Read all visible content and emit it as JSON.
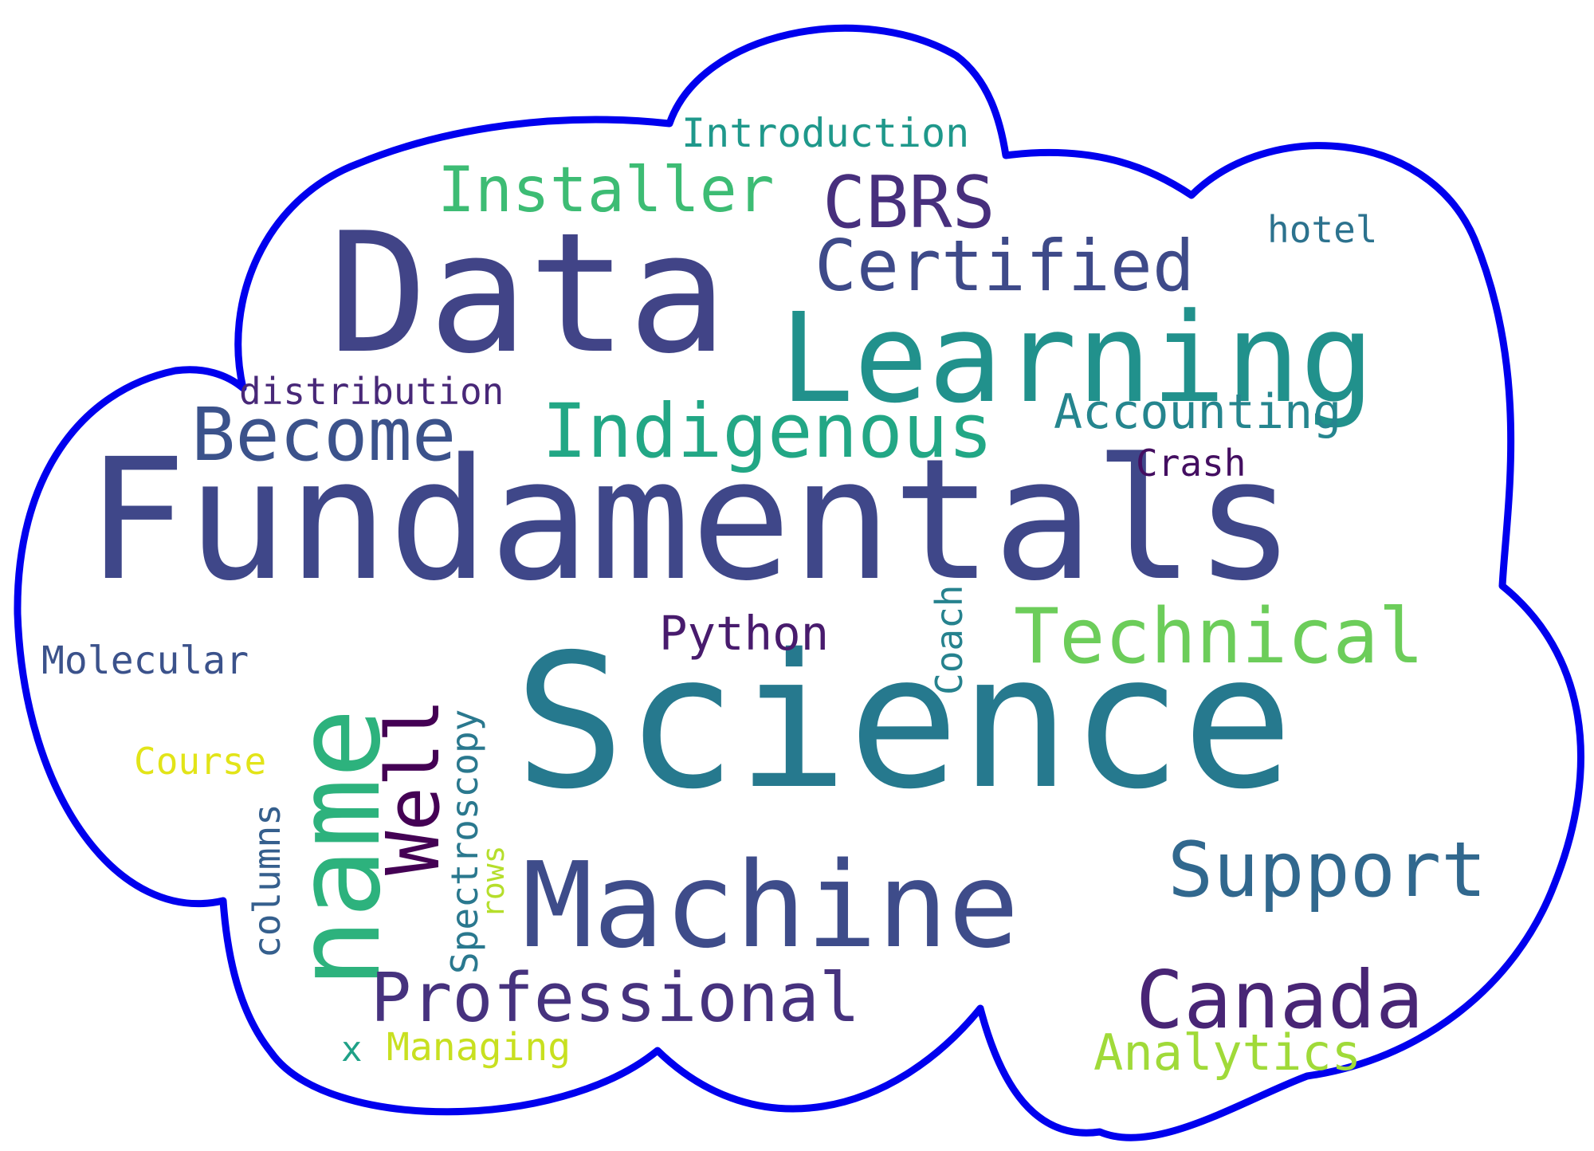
{
  "colors": {
    "outline": "#0000ee",
    "background": "#ffffff"
  },
  "words": [
    {
      "id": "fundamentals",
      "text": "Fundamentals",
      "color": "#3f4789",
      "orientation": "horizontal"
    },
    {
      "id": "science",
      "text": "Science",
      "color": "#26798e",
      "orientation": "horizontal"
    },
    {
      "id": "data",
      "text": "Data",
      "color": "#414487",
      "orientation": "horizontal"
    },
    {
      "id": "learning",
      "text": "Learning",
      "color": "#21918c",
      "orientation": "horizontal"
    },
    {
      "id": "machine",
      "text": "Machine",
      "color": "#3e4c8a",
      "orientation": "horizontal"
    },
    {
      "id": "name",
      "text": "name",
      "color": "#2db27d",
      "orientation": "vertical"
    },
    {
      "id": "technical",
      "text": "Technical",
      "color": "#6ccd5a",
      "orientation": "horizontal"
    },
    {
      "id": "indigenous",
      "text": "Indigenous",
      "color": "#22a785",
      "orientation": "horizontal"
    },
    {
      "id": "become",
      "text": "Become",
      "color": "#3b528b",
      "orientation": "horizontal"
    },
    {
      "id": "certified",
      "text": "Certified",
      "color": "#3e4a89",
      "orientation": "horizontal"
    },
    {
      "id": "cbrs",
      "text": "CBRS",
      "color": "#472f7d",
      "orientation": "horizontal"
    },
    {
      "id": "installer",
      "text": "Installer",
      "color": "#3dbc74",
      "orientation": "horizontal"
    },
    {
      "id": "support",
      "text": "Support",
      "color": "#31688e",
      "orientation": "horizontal"
    },
    {
      "id": "canada",
      "text": "Canada",
      "color": "#482575",
      "orientation": "horizontal"
    },
    {
      "id": "professional",
      "text": "Professional",
      "color": "#46327e",
      "orientation": "horizontal"
    },
    {
      "id": "well",
      "text": "Well",
      "color": "#440154",
      "orientation": "vertical"
    },
    {
      "id": "accounting",
      "text": "Accounting",
      "color": "#25858e",
      "orientation": "horizontal"
    },
    {
      "id": "analytics",
      "text": "Analytics",
      "color": "#a0da39",
      "orientation": "horizontal"
    },
    {
      "id": "python",
      "text": "Python",
      "color": "#481b6d",
      "orientation": "horizontal"
    },
    {
      "id": "introduction",
      "text": "Introduction",
      "color": "#1f988b",
      "orientation": "horizontal"
    },
    {
      "id": "distribution",
      "text": "distribution",
      "color": "#482878",
      "orientation": "horizontal"
    },
    {
      "id": "molecular",
      "text": "Molecular",
      "color": "#3b528b",
      "orientation": "horizontal"
    },
    {
      "id": "course",
      "text": "Course",
      "color": "#e2e418",
      "orientation": "horizontal"
    },
    {
      "id": "managing",
      "text": "Managing",
      "color": "#c8e020",
      "orientation": "horizontal"
    },
    {
      "id": "crash",
      "text": "Crash",
      "color": "#440f61",
      "orientation": "horizontal"
    },
    {
      "id": "hotel",
      "text": "hotel",
      "color": "#2c728e",
      "orientation": "horizontal"
    },
    {
      "id": "coach",
      "text": "Coach",
      "color": "#26828e",
      "orientation": "vertical"
    },
    {
      "id": "spectroscopy",
      "text": "Spectroscopy",
      "color": "#2a788e",
      "orientation": "vertical"
    },
    {
      "id": "rows",
      "text": "rows",
      "color": "#b5de2b",
      "orientation": "vertical"
    },
    {
      "id": "columns",
      "text": "columns",
      "color": "#355f8d",
      "orientation": "vertical"
    },
    {
      "id": "x",
      "text": "x",
      "color": "#1fa187",
      "orientation": "horizontal"
    }
  ]
}
